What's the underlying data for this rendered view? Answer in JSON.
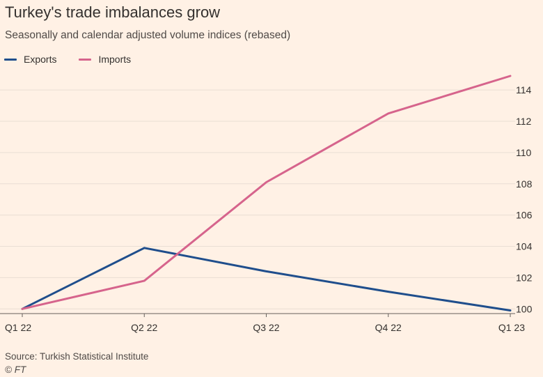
{
  "title": "Turkey's trade imbalances grow",
  "subtitle": "Seasonally and calendar adjusted volume indices (rebased)",
  "source": "Source: Turkish Statistical Institute",
  "copyright": "© FT",
  "colors": {
    "background": "#FFF1E5",
    "exports": "#1F4E8C",
    "imports": "#D6648C",
    "grid": "#E9DED4",
    "axis": "#66605C",
    "tick_text": "#33302E"
  },
  "chart_data": {
    "type": "line",
    "categories": [
      "Q1 22",
      "Q2 22",
      "Q3 22",
      "Q4 22",
      "Q1 23"
    ],
    "series": [
      {
        "name": "Exports",
        "color": "#1F4E8C",
        "values": [
          100,
          103.9,
          102.4,
          101.1,
          99.9
        ]
      },
      {
        "name": "Imports",
        "color": "#D6648C",
        "values": [
          100,
          101.8,
          108.1,
          112.5,
          114.9
        ]
      }
    ],
    "ylim": [
      99.7,
      115.3
    ],
    "yticks": [
      100,
      102,
      104,
      106,
      108,
      110,
      112,
      114
    ],
    "ytick_labels": [
      "100",
      "102",
      "104",
      "106",
      "108",
      "110",
      "112",
      "114"
    ],
    "y_axis_side": "right",
    "grid": true,
    "legend": "top-left",
    "xlabel": "",
    "ylabel": ""
  }
}
